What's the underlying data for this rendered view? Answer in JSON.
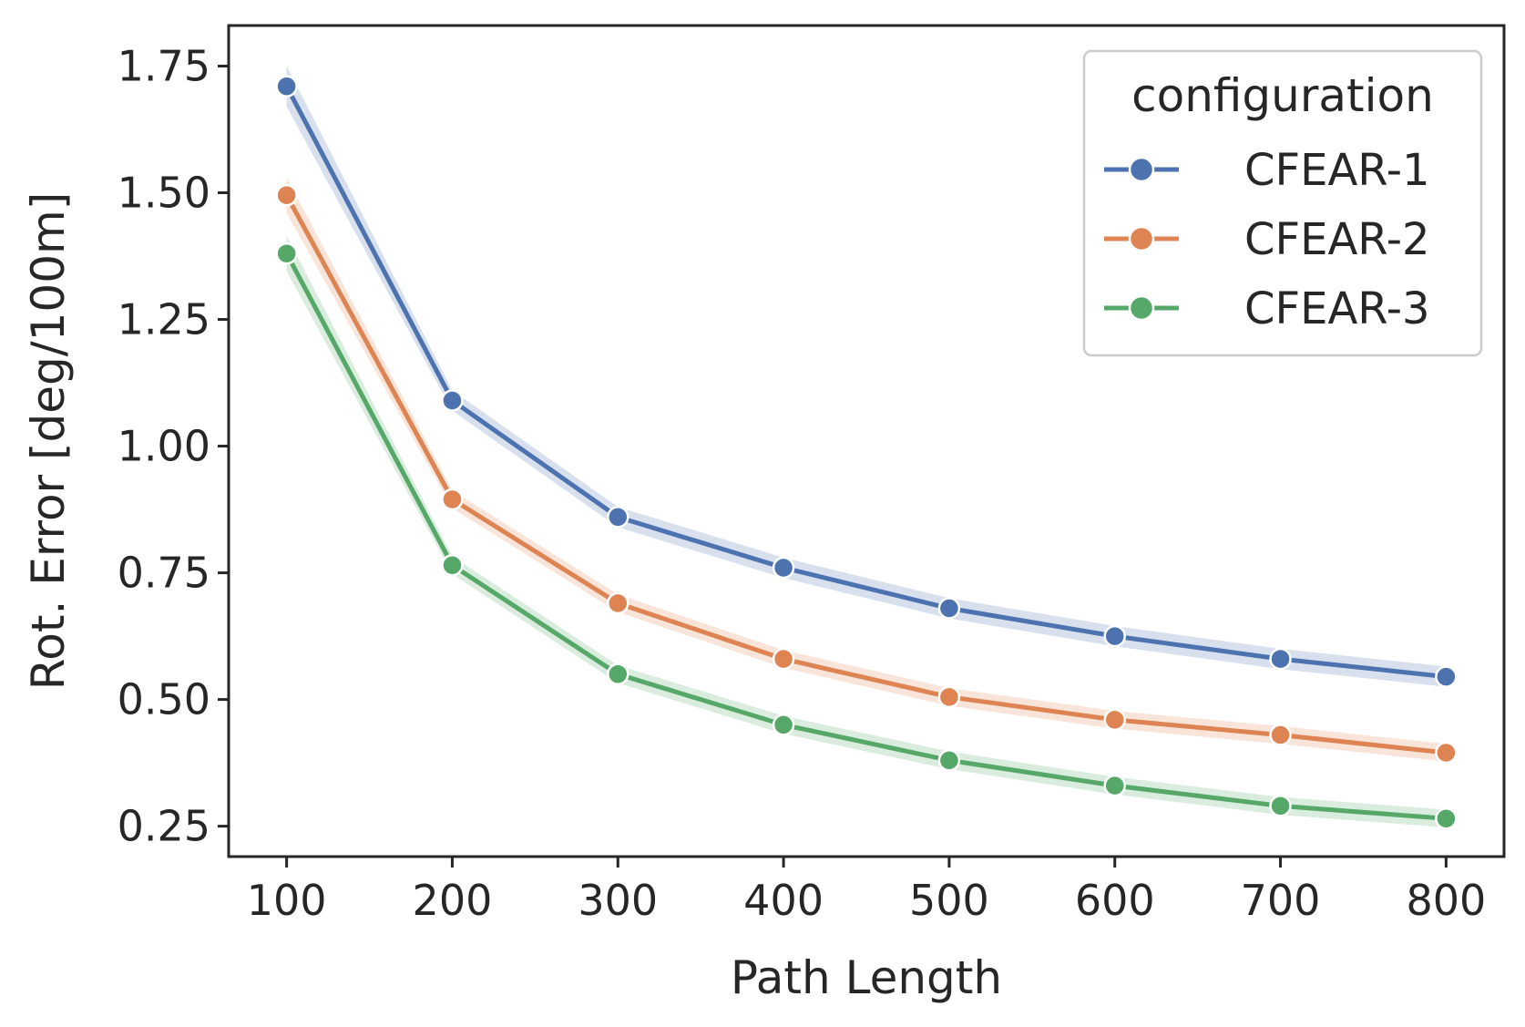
{
  "chart_data": {
    "type": "line",
    "xlabel": "Path Length",
    "ylabel": "Rot. Error [deg/100m]",
    "x": [
      100,
      200,
      300,
      400,
      500,
      600,
      700,
      800
    ],
    "xticks": [
      "100",
      "200",
      "300",
      "400",
      "500",
      "600",
      "700",
      "800"
    ],
    "xlim": [
      65,
      835
    ],
    "yticks": [
      "0.25",
      "0.50",
      "0.75",
      "1.00",
      "1.25",
      "1.50",
      "1.75"
    ],
    "ytick_values": [
      0.25,
      0.5,
      0.75,
      1.0,
      1.25,
      1.5,
      1.75
    ],
    "ylim": [
      0.19,
      1.83
    ],
    "grid": false,
    "legend": {
      "title": "configuration",
      "placement": "top-right"
    },
    "series": [
      {
        "name": "CFEAR-1",
        "color": "#4c72b0",
        "values": [
          1.71,
          1.09,
          0.86,
          0.76,
          0.68,
          0.625,
          0.58,
          0.545
        ],
        "band": 0.04
      },
      {
        "name": "CFEAR-2",
        "color": "#dd8452",
        "values": [
          1.495,
          0.895,
          0.69,
          0.58,
          0.505,
          0.46,
          0.43,
          0.395
        ],
        "band": 0.035
      },
      {
        "name": "CFEAR-3",
        "color": "#55a868",
        "values": [
          1.38,
          0.765,
          0.55,
          0.45,
          0.38,
          0.33,
          0.29,
          0.265
        ],
        "band": 0.035
      }
    ]
  }
}
